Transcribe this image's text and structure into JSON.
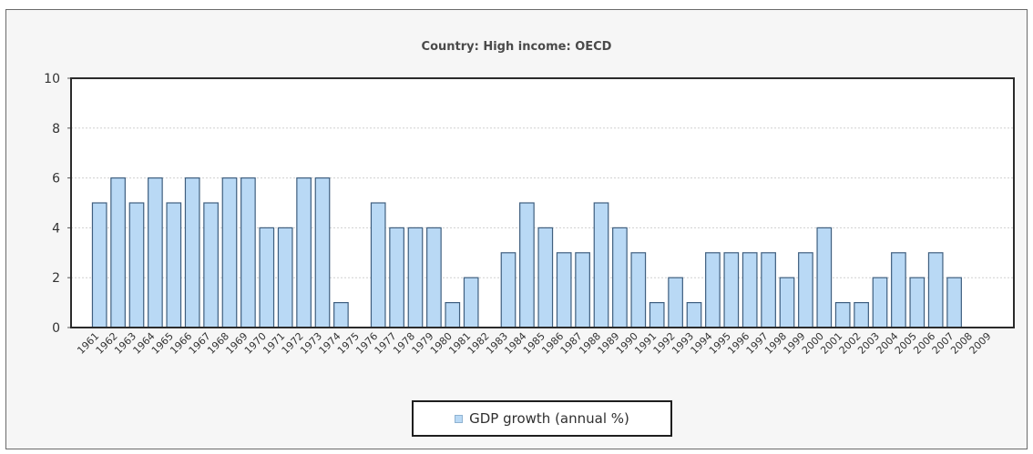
{
  "chart_data": {
    "type": "bar",
    "title": "Country: High income: OECD",
    "xlabel": "",
    "ylabel": "",
    "ylim": [
      0,
      10
    ],
    "yticks": [
      0,
      2,
      4,
      6,
      8,
      10
    ],
    "grid": true,
    "legend_position": "bottom",
    "categories": [
      "1961",
      "1962",
      "1963",
      "1964",
      "1965",
      "1966",
      "1967",
      "1968",
      "1969",
      "1970",
      "1971",
      "1972",
      "1973",
      "1974",
      "1975",
      "1976",
      "1977",
      "1978",
      "1979",
      "1980",
      "1981",
      "1982",
      "1983",
      "1984",
      "1985",
      "1986",
      "1987",
      "1988",
      "1989",
      "1990",
      "1991",
      "1992",
      "1993",
      "1994",
      "1995",
      "1996",
      "1997",
      "1998",
      "1999",
      "2000",
      "2001",
      "2002",
      "2003",
      "2004",
      "2005",
      "2006",
      "2007",
      "2008",
      "2009"
    ],
    "series": [
      {
        "name": "GDP growth (annual %)",
        "values": [
          5,
          6,
          5,
          6,
          5,
          6,
          5,
          6,
          6,
          4,
          4,
          6,
          6,
          1,
          null,
          5,
          4,
          4,
          4,
          1,
          2,
          null,
          3,
          5,
          4,
          3,
          3,
          5,
          4,
          3,
          1,
          2,
          1,
          3,
          3,
          3,
          3,
          2,
          3,
          4,
          1,
          1,
          2,
          3,
          2,
          3,
          2,
          null,
          null
        ]
      }
    ],
    "colors": {
      "bar_fill": "#b9d9f5",
      "bar_stroke": "#3f5f7f",
      "plot_bg": "#ffffff",
      "grid": "#d0d0d0"
    }
  }
}
